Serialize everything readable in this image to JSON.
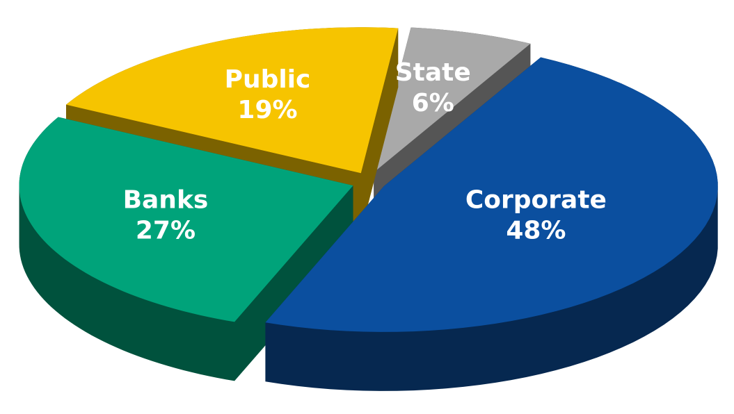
{
  "chart_data": {
    "type": "pie",
    "categories": [
      "Corporate",
      "Banks",
      "Public",
      "State"
    ],
    "values": [
      48,
      27,
      19,
      6
    ],
    "value_labels": [
      "48%",
      "27%",
      "19%",
      "6%"
    ],
    "colors": [
      "#0b4f9f",
      "#00a37a",
      "#f6c400",
      "#a9a9a9"
    ]
  }
}
